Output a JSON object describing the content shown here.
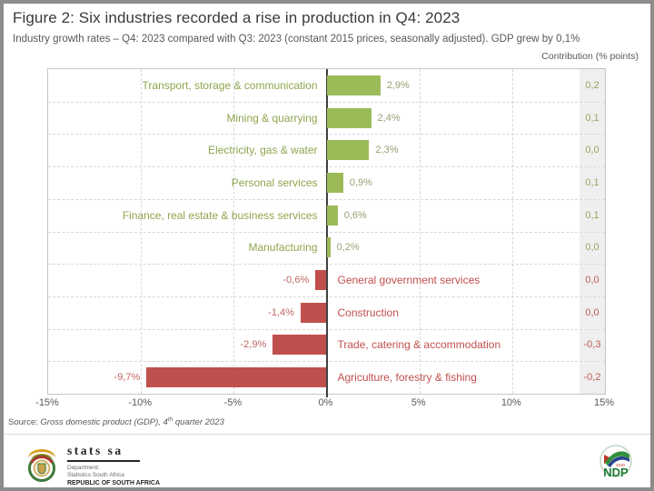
{
  "header": {
    "title": "Figure 2: Six industries recorded a rise in production in Q4: 2023",
    "subtitle": "Industry growth rates – Q4: 2023 compared with Q3: 2023 (constant 2015 prices, seasonally adjusted). GDP grew by 0,1%"
  },
  "chart_data": {
    "type": "bar",
    "orientation": "horizontal",
    "title": "Industry growth rates Q4: 2023 vs Q3: 2023",
    "contribution_header": "Contribution (% points)",
    "xlim": [
      -15,
      15
    ],
    "grid": "dashed",
    "x_ticks": [
      {
        "label": "-15%",
        "value": -15
      },
      {
        "label": "-10%",
        "value": -10
      },
      {
        "label": "-5%",
        "value": -5
      },
      {
        "label": "0%",
        "value": 0
      },
      {
        "label": "5%",
        "value": 5
      },
      {
        "label": "10%",
        "value": 10
      },
      {
        "label": "15%",
        "value": 15
      }
    ],
    "rows": [
      {
        "category": "Transport, storage & communication",
        "value": 2.9,
        "value_label": "2,9%",
        "contribution": "0,2",
        "positive": true
      },
      {
        "category": "Mining & quarrying",
        "value": 2.4,
        "value_label": "2,4%",
        "contribution": "0,1",
        "positive": true
      },
      {
        "category": "Electricity, gas & water",
        "value": 2.3,
        "value_label": "2,3%",
        "contribution": "0,0",
        "positive": true
      },
      {
        "category": "Personal services",
        "value": 0.9,
        "value_label": "0,9%",
        "contribution": "0,1",
        "positive": true
      },
      {
        "category": "Finance, real estate & business services",
        "value": 0.6,
        "value_label": "0,6%",
        "contribution": "0,1",
        "positive": true
      },
      {
        "category": "Manufacturing",
        "value": 0.2,
        "value_label": "0,2%",
        "contribution": "0,0",
        "positive": true
      },
      {
        "category": "General government services",
        "value": -0.6,
        "value_label": "-0,6%",
        "contribution": "0,0",
        "positive": false
      },
      {
        "category": "Construction",
        "value": -1.4,
        "value_label": "-1,4%",
        "contribution": "0,0",
        "positive": false
      },
      {
        "category": "Trade, catering & accommodation",
        "value": -2.9,
        "value_label": "-2,9%",
        "contribution": "-0,3",
        "positive": false
      },
      {
        "category": "Agriculture, forestry & fishing",
        "value": -9.7,
        "value_label": "-9,7%",
        "contribution": "-0,2",
        "positive": false
      }
    ],
    "colors": {
      "positive_bar": "#9bbb59",
      "negative_bar": "#c0504d",
      "positive_category_text": "#8da64e",
      "negative_category_text": "#c0504d",
      "positive_value_text": "#97a273",
      "negative_value_text": "#bf6763",
      "positive_contribution_text": "#9aa45f",
      "negative_contribution_text": "#c05a56",
      "contribution_column_bg": "#efefef",
      "zero_axis": "#404040"
    }
  },
  "source": {
    "pre": "Source: ",
    "italic": "Gross domestic product (GDP), 4",
    "sup": "th",
    "post": " quarter 2023"
  },
  "footer": {
    "stats_sa": {
      "brand": "stats sa",
      "line1": "Department:",
      "line2": "Statistics South Africa",
      "line3": "REPUBLIC OF SOUTH AFRICA"
    },
    "ndp": {
      "year": "2030",
      "label": "NDP"
    }
  }
}
